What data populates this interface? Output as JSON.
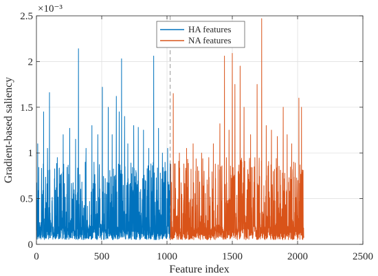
{
  "chart_data": {
    "type": "line",
    "xlabel": "Feature index",
    "ylabel": "Gradient-based saliency",
    "y_exponent_label": "×10⁻³",
    "xlim": [
      0,
      2500
    ],
    "ylim": [
      0,
      2.5
    ],
    "x_ticks": [
      "0",
      "500",
      "1000",
      "1500",
      "2000",
      "2500"
    ],
    "y_ticks": [
      "0",
      "0.5",
      "1",
      "1.5",
      "2",
      "2.5"
    ],
    "grid": true,
    "legend_position": "top-center",
    "divider_x": 1024,
    "series": [
      {
        "name": "HA features",
        "color": "#0072BD",
        "x_range": [
          1,
          1024
        ],
        "baseline_range": [
          0.05,
          0.9
        ],
        "peaks": [
          {
            "x": 10,
            "y": 1.1
          },
          {
            "x": 55,
            "y": 1.45
          },
          {
            "x": 85,
            "y": 1.05
          },
          {
            "x": 100,
            "y": 1.66
          },
          {
            "x": 160,
            "y": 0.95
          },
          {
            "x": 205,
            "y": 1.2
          },
          {
            "x": 255,
            "y": 1.27
          },
          {
            "x": 300,
            "y": 1.15
          },
          {
            "x": 322,
            "y": 2.14
          },
          {
            "x": 380,
            "y": 1.05
          },
          {
            "x": 425,
            "y": 1.3
          },
          {
            "x": 470,
            "y": 1.2
          },
          {
            "x": 505,
            "y": 1.72
          },
          {
            "x": 550,
            "y": 1.5
          },
          {
            "x": 580,
            "y": 1.2
          },
          {
            "x": 612,
            "y": 1.62
          },
          {
            "x": 634,
            "y": 1.45
          },
          {
            "x": 652,
            "y": 2.03
          },
          {
            "x": 675,
            "y": 1.4
          },
          {
            "x": 700,
            "y": 1.1
          },
          {
            "x": 745,
            "y": 1.3
          },
          {
            "x": 780,
            "y": 1.28
          },
          {
            "x": 820,
            "y": 1.25
          },
          {
            "x": 860,
            "y": 1.05
          },
          {
            "x": 898,
            "y": 2.06
          },
          {
            "x": 935,
            "y": 1.27
          },
          {
            "x": 965,
            "y": 1.0
          },
          {
            "x": 1005,
            "y": 1.05
          }
        ]
      },
      {
        "name": "NA features",
        "color": "#D95319",
        "x_range": [
          1025,
          2048
        ],
        "baseline_range": [
          0.05,
          0.95
        ],
        "peaks": [
          {
            "x": 1048,
            "y": 1.65
          },
          {
            "x": 1095,
            "y": 1.0
          },
          {
            "x": 1150,
            "y": 1.05
          },
          {
            "x": 1200,
            "y": 1.1
          },
          {
            "x": 1265,
            "y": 1.0
          },
          {
            "x": 1320,
            "y": 0.95
          },
          {
            "x": 1355,
            "y": 1.1
          },
          {
            "x": 1405,
            "y": 1.32
          },
          {
            "x": 1440,
            "y": 2.06
          },
          {
            "x": 1475,
            "y": 1.25
          },
          {
            "x": 1500,
            "y": 2.09
          },
          {
            "x": 1520,
            "y": 1.75
          },
          {
            "x": 1560,
            "y": 1.95
          },
          {
            "x": 1590,
            "y": 1.5
          },
          {
            "x": 1640,
            "y": 1.2
          },
          {
            "x": 1690,
            "y": 1.75
          },
          {
            "x": 1725,
            "y": 2.47
          },
          {
            "x": 1760,
            "y": 1.3
          },
          {
            "x": 1800,
            "y": 1.25
          },
          {
            "x": 1845,
            "y": 1.18
          },
          {
            "x": 1890,
            "y": 1.5
          },
          {
            "x": 1920,
            "y": 1.2
          },
          {
            "x": 1955,
            "y": 1.1
          },
          {
            "x": 2010,
            "y": 1.6
          },
          {
            "x": 2030,
            "y": 1.5
          }
        ]
      }
    ]
  }
}
